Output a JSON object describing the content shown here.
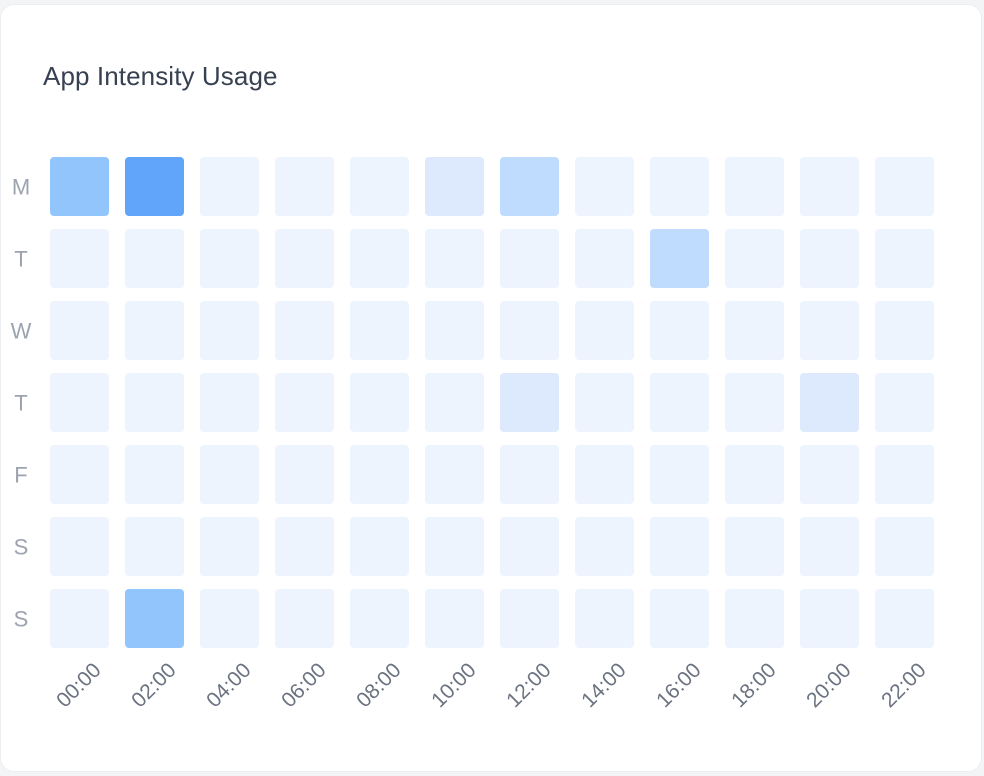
{
  "card": {
    "title": "App Intensity Usage"
  },
  "chart_data": {
    "type": "heatmap",
    "title": "App Intensity Usage",
    "rows": [
      "M",
      "T",
      "W",
      "T",
      "F",
      "S",
      "S"
    ],
    "columns": [
      "00:00",
      "02:00",
      "04:00",
      "06:00",
      "08:00",
      "10:00",
      "12:00",
      "14:00",
      "16:00",
      "18:00",
      "20:00",
      "22:00"
    ],
    "values": [
      [
        3,
        5,
        0,
        0,
        0,
        1,
        2,
        0,
        0,
        0,
        0,
        0
      ],
      [
        0,
        0,
        0,
        0,
        0,
        0,
        0,
        0,
        2,
        0,
        0,
        0
      ],
      [
        0,
        0,
        0,
        0,
        0,
        0,
        0,
        0,
        0,
        0,
        0,
        0
      ],
      [
        0,
        0,
        0,
        0,
        0,
        0,
        1,
        0,
        0,
        0,
        1,
        0
      ],
      [
        0,
        0,
        0,
        0,
        0,
        0,
        0,
        0,
        0,
        0,
        0,
        0
      ],
      [
        0,
        0,
        0,
        0,
        0,
        0,
        0,
        0,
        0,
        0,
        0,
        0
      ],
      [
        0,
        3,
        0,
        0,
        0,
        0,
        0,
        0,
        0,
        0,
        0,
        0
      ]
    ],
    "value_range": [
      0,
      5
    ],
    "legend": "none",
    "color_scale": [
      "#eef4fe",
      "#dde9fd",
      "#bfdbfe",
      "#93c5fd",
      "#7db6fc",
      "#60a5fa"
    ]
  }
}
